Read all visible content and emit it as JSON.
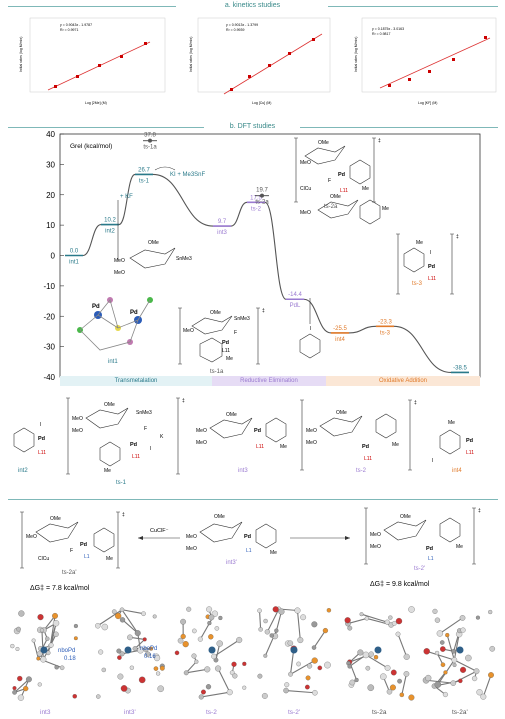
{
  "header": {
    "kinetics_title": "a. kinetics studies",
    "dft_title": "b. DFT studies"
  },
  "kinetics_plots": [
    {
      "equation": "y = 0.9043x - 1.9787",
      "r2": "R² = 0.9971",
      "xlabel": "Log [2Me] (M)",
      "ylabel": "Initial rates (log M/min)",
      "xticks": [
        "-1.05",
        "-1.1",
        "-1.15",
        "-1.2",
        "-1.25",
        "-1.3",
        "-1.35"
      ],
      "yticks": [
        "-2.9",
        "-2.95",
        "-3",
        "-3.05",
        "-3.1",
        "-3.15"
      ]
    },
    {
      "equation": "y = 0.9013x - 1.3799",
      "r2": "R² = 0.9939",
      "xlabel": "Log [Cu] (M)",
      "ylabel": "Initial rates (log M/min)",
      "xticks": [
        "-2.35",
        "-2.4",
        "-2.45",
        "-2.5",
        "-2.55",
        "-2.6",
        "-2.65",
        "-2.7"
      ],
      "yticks": [
        "-3.1",
        "-3.15",
        "-3.2",
        "-3.25",
        "-3.3",
        "-3.35",
        "-3.4"
      ]
    },
    {
      "equation": "y = 0.1875x - 3.0163",
      "r2": "R² = 0.9817",
      "xlabel": "Log [KF] (M)",
      "ylabel": "Initial rates (log M/min)",
      "xticks": [
        "-0.9",
        "-1",
        "-1.1",
        "-1.2",
        "-1.3",
        "-1.4"
      ],
      "yticks": [
        "-3.22",
        "-3.225",
        "-3.23",
        "-3.235",
        "-3.24",
        "-3.245"
      ]
    }
  ],
  "chart_data": {
    "type": "line",
    "ylabel": "Grel (kcal/mol)",
    "ylim": [
      -40,
      40
    ],
    "yticks": [
      40,
      30,
      20,
      10,
      0,
      -10,
      -20,
      -30,
      -40
    ],
    "points": [
      {
        "label": "int1",
        "value": "0.0",
        "y": 0.0,
        "color": "teal"
      },
      {
        "label": "int2",
        "value": "10.2",
        "y": 10.2,
        "color": "teal"
      },
      {
        "label": "ts-1",
        "value": "26.7",
        "y": 26.7,
        "color": "teal"
      },
      {
        "label": "int3",
        "value": "9.7",
        "y": 9.7,
        "color": "purple"
      },
      {
        "label": "ts-2",
        "value": "17.5",
        "y": 17.5,
        "color": "purple"
      },
      {
        "label": "PdL",
        "value": "-14.4",
        "y": -14.4,
        "color": "purple"
      },
      {
        "label": "int4",
        "value": "-25.5",
        "y": -25.5,
        "color": "orange"
      },
      {
        "label": "ts-3",
        "value": "-23.3",
        "y": -23.3,
        "color": "orange"
      },
      {
        "label": "int2",
        "value": "-38.5",
        "y": -38.5,
        "color": "teal"
      }
    ],
    "off_path": [
      {
        "label": "ts-1a",
        "value": "37.8",
        "y": 37.8
      },
      {
        "label": "ts-2a",
        "value": "19.7",
        "y": 19.7
      }
    ],
    "annotations": [
      "+ KF",
      "KI + Me3SnF"
    ],
    "stages": [
      "Transmetalation",
      "Reductive Elimination",
      "Oxidative Addition"
    ]
  },
  "diagram_labels": {
    "int1": "int1",
    "ts1a": "ts-1a",
    "ts2a": "ts-2a",
    "ts3": "ts-3",
    "L11": "L11",
    "sugar_reagent": "SnMe3",
    "OMe": "OMe",
    "MeO": "MeO",
    "Pd": "Pd",
    "F": "F",
    "ClCu": "ClCu",
    "Me": "Me",
    "I": "I",
    "dagger": "‡"
  },
  "row2": {
    "int2": "int2",
    "ts1": "ts-1",
    "int3": "int3",
    "ts2": "ts-2",
    "int4": "int4",
    "K": "K",
    "SnMe3": "SnMe3"
  },
  "row3": {
    "ts2a_prime": "ts-2a'",
    "int3_prime": "int3'",
    "ts2_prime": "ts-2'",
    "reagent": "CuClF⁻",
    "L1": "L1",
    "dg_left": "ΔG‡ = 7.8 kcal/mol",
    "dg_right": "ΔG‡ = 9.8 kcal/mol"
  },
  "row4": {
    "labels": [
      "int3",
      "int3'",
      "ts-2",
      "ts-2'",
      "ts-2a",
      "ts-2a'"
    ],
    "nbo1": "nboPd",
    "nbo1_val": "0.18",
    "nbo2": "nboPd",
    "nbo2_val": "0.16"
  }
}
